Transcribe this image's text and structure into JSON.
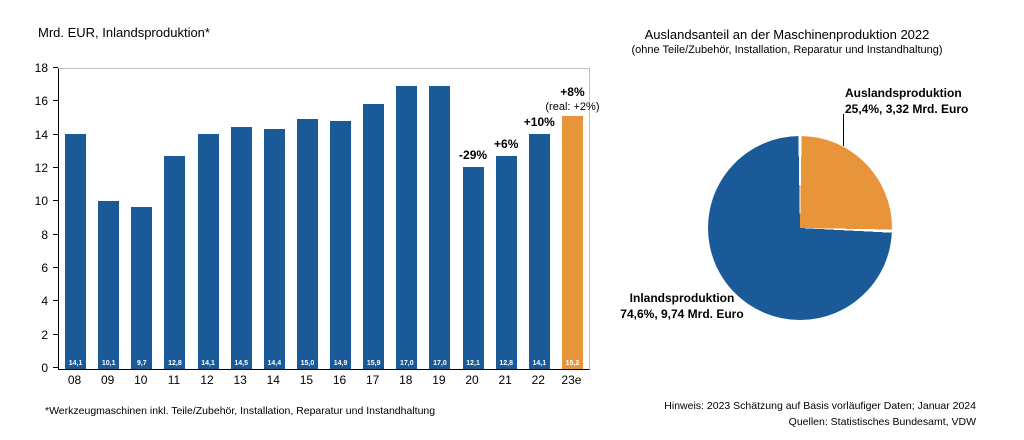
{
  "texts": {
    "footnote": "*Werkzeugmaschinen inkl. Teile/Zubehör, Installation, Reparatur und Instandhaltung",
    "note_line1": "Hinweis: 2023 Schätzung auf Basis vorläufiger Daten; Januar 2024",
    "note_line2": "Quellen: Statistisches Bundesamt, VDW"
  },
  "chart_data": [
    {
      "type": "bar",
      "title": "Mrd. EUR, Inlandsproduktion*",
      "categories": [
        "08",
        "09",
        "10",
        "11",
        "12",
        "13",
        "14",
        "15",
        "16",
        "17",
        "18",
        "19",
        "20",
        "21",
        "22",
        "23e"
      ],
      "values": [
        14.1,
        10.1,
        9.7,
        12.8,
        14.1,
        14.5,
        14.4,
        15.0,
        14.9,
        15.9,
        17.0,
        17.0,
        12.1,
        12.8,
        14.1,
        15.2
      ],
      "value_labels": [
        "14,1",
        "10,1",
        "9,7",
        "12,8",
        "14,1",
        "14,5",
        "14,4",
        "15,0",
        "14,9",
        "15,9",
        "17,0",
        "17,0",
        "12,1",
        "12,8",
        "14,1",
        "15,2"
      ],
      "bar_colors": {
        "default": "#1A5A99",
        "highlight": "#E8943A"
      },
      "highlight_index": 15,
      "annotations": [
        {
          "index": 12,
          "text": "-29%"
        },
        {
          "index": 13,
          "text": "+6%"
        },
        {
          "index": 14,
          "text": "+10%"
        },
        {
          "index": 15,
          "text": "+8%",
          "sub": "(real: +2%)"
        }
      ],
      "xlabel": "",
      "ylabel": "Mrd. EUR",
      "ylim": [
        0,
        18
      ],
      "yticks": [
        0,
        2,
        4,
        6,
        8,
        10,
        12,
        14,
        16,
        18
      ],
      "grid": false,
      "legend": "none"
    },
    {
      "type": "pie",
      "title": "Auslandsanteil an der Maschinenproduktion 2022",
      "subtitle": "(ohne Teile/Zubehör, Installation, Reparatur und Instandhaltung)",
      "start_angle_deg": 0,
      "slices": [
        {
          "label": "Auslandsproduktion",
          "detail": "25,4%, 3,32 Mrd. Euro",
          "value": 25.4,
          "color": "#E8943A"
        },
        {
          "label": "Inlandsproduktion",
          "detail": "74,6%, 9,74 Mrd. Euro",
          "value": 74.6,
          "color": "#1A5A99"
        }
      ]
    }
  ]
}
